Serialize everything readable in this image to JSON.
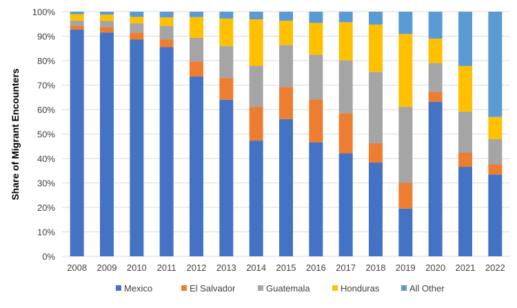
{
  "chart_data": {
    "type": "bar",
    "stacked": true,
    "title": "",
    "xlabel": "",
    "ylabel": "Share of Migrant Encounters",
    "ylim": [
      0,
      100
    ],
    "yticks": [
      "0%",
      "10%",
      "20%",
      "30%",
      "40%",
      "50%",
      "60%",
      "70%",
      "80%",
      "90%",
      "100%"
    ],
    "grid": true,
    "legend_position": "bottom",
    "categories": [
      "2008",
      "2009",
      "2010",
      "2011",
      "2012",
      "2013",
      "2014",
      "2015",
      "2016",
      "2017",
      "2018",
      "2019",
      "2020",
      "2021",
      "2022"
    ],
    "series": [
      {
        "name": "Mexico",
        "color": "#4472C4",
        "values": [
          92.7,
          91.5,
          88.6,
          85.5,
          73.5,
          64.0,
          47.3,
          56.1,
          46.6,
          42.1,
          38.3,
          19.5,
          63.2,
          36.6,
          33.4
        ]
      },
      {
        "name": "El Salvador",
        "color": "#ED7D31",
        "values": [
          1.6,
          2.2,
          2.9,
          3.2,
          6.1,
          8.9,
          13.8,
          13.1,
          17.5,
          16.4,
          7.9,
          10.5,
          4.0,
          5.8,
          4.2
        ]
      },
      {
        "name": "Guatemala",
        "color": "#A5A5A5",
        "values": [
          2.1,
          2.5,
          3.8,
          5.5,
          9.7,
          13.1,
          16.8,
          17.2,
          18.3,
          21.7,
          29.2,
          31.1,
          11.8,
          16.8,
          10.3
        ]
      },
      {
        "name": "Honduras",
        "color": "#FFC000",
        "values": [
          2.6,
          2.6,
          2.6,
          3.5,
          8.5,
          11.2,
          19.0,
          9.9,
          13.0,
          15.5,
          19.3,
          29.8,
          10.0,
          18.6,
          9.1
        ]
      },
      {
        "name": "All Other",
        "color": "#5B9BD5",
        "values": [
          1.0,
          1.2,
          2.1,
          2.3,
          2.2,
          2.8,
          3.1,
          3.7,
          4.6,
          4.3,
          5.3,
          9.1,
          11.0,
          22.2,
          43.0
        ]
      }
    ]
  }
}
